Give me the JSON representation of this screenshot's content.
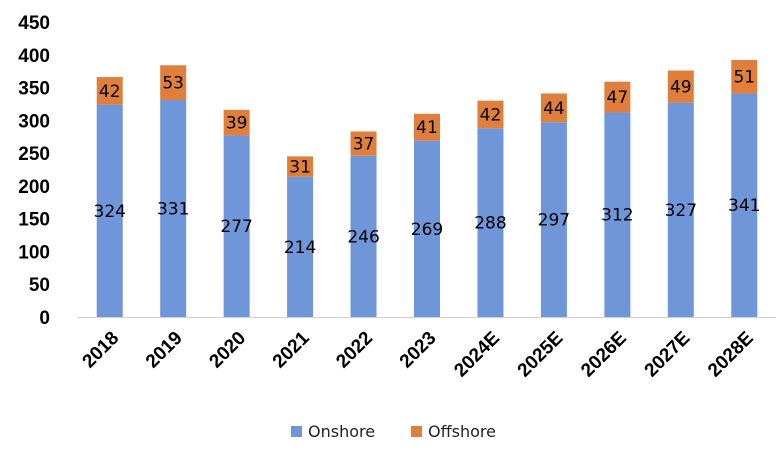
{
  "chart_data": {
    "type": "bar",
    "stacked": true,
    "categories": [
      "2018",
      "2019",
      "2020",
      "2021",
      "2022",
      "2023",
      "2024E",
      "2025E",
      "2026E",
      "2027E",
      "2028E"
    ],
    "series": [
      {
        "name": "Onshore",
        "color": "#6f96d8",
        "values": [
          324,
          331,
          277,
          214,
          246,
          269,
          288,
          297,
          312,
          327,
          341
        ]
      },
      {
        "name": "Offshore",
        "color": "#e07f3c",
        "values": [
          42,
          53,
          39,
          31,
          37,
          41,
          42,
          44,
          47,
          49,
          51
        ]
      }
    ],
    "ylim": [
      0,
      450
    ],
    "yticks": [
      0,
      50,
      100,
      150,
      200,
      250,
      300,
      350,
      400,
      450
    ],
    "title": "",
    "xlabel": "",
    "ylabel": "",
    "grid": false,
    "legend_position": "bottom"
  }
}
